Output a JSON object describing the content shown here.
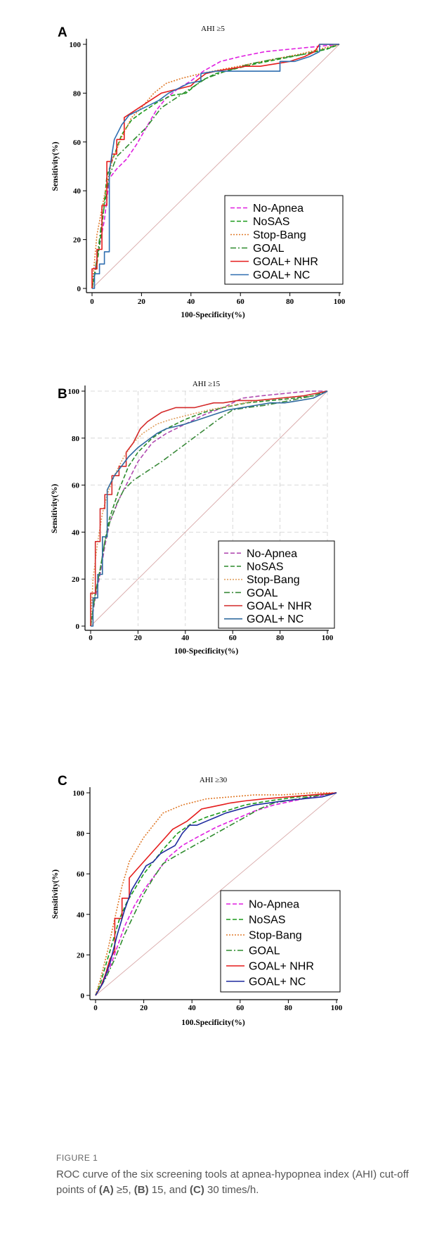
{
  "chart_data": [
    {
      "type": "line",
      "panel_label": "A",
      "title": "AHI ≥5",
      "xlabel": "100-Specificity(%)",
      "ylabel": "Sensitivity(%)",
      "xlim": [
        0,
        100
      ],
      "ylim": [
        0,
        100
      ],
      "xticks": [
        "0",
        "20",
        "40",
        "60",
        "80",
        "100"
      ],
      "yticks": [
        "0",
        "20",
        "40",
        "60",
        "80",
        "100"
      ],
      "grid": false,
      "legend_position": "bottom-right",
      "series": [
        {
          "name": "No-Apnea",
          "color": "#e01fe0",
          "dash": "6,3",
          "x": [
            0,
            2,
            5,
            7,
            10,
            14,
            18,
            22,
            26,
            30,
            35,
            40,
            45,
            52,
            60,
            70,
            80,
            90,
            100
          ],
          "y": [
            0,
            12,
            28,
            45,
            49,
            53,
            59,
            66,
            73,
            78,
            82,
            85,
            89,
            93,
            95,
            97,
            98,
            99,
            100
          ]
        },
        {
          "name": "NoSAS",
          "color": "#1a9a1a",
          "dash": "6,3",
          "x": [
            0,
            2,
            4,
            6,
            8,
            12,
            16,
            20,
            26,
            32,
            38,
            44,
            50,
            58,
            66,
            76,
            86,
            95,
            100
          ],
          "y": [
            0,
            10,
            25,
            46,
            52,
            63,
            69,
            72,
            76,
            79,
            80,
            85,
            88,
            90,
            92,
            94,
            96,
            98,
            100
          ]
        },
        {
          "name": "Stop-Bang",
          "color": "#e07a2a",
          "dash": "2,2",
          "x": [
            0,
            2,
            5,
            8,
            12,
            16,
            20,
            25,
            30,
            36,
            44,
            54,
            64,
            74,
            84,
            92,
            100
          ],
          "y": [
            0,
            22,
            38,
            52,
            62,
            70,
            74,
            80,
            84,
            86,
            88,
            90,
            92,
            94,
            96,
            98,
            100
          ]
        },
        {
          "name": "GOAL",
          "color": "#2e8b2e",
          "dash": "8,3,2,3",
          "x": [
            0,
            2,
            4,
            7,
            10,
            16,
            22,
            28,
            34,
            40,
            46,
            54,
            64,
            74,
            86,
            94,
            100
          ],
          "y": [
            0,
            12,
            28,
            46,
            54,
            60,
            66,
            74,
            78,
            82,
            86,
            89,
            92,
            94,
            96,
            98,
            100
          ]
        },
        {
          "name": "GOAL+ NHR",
          "color": "#e51c1c",
          "dash": "",
          "x": [
            0,
            0,
            2,
            2,
            4,
            4,
            6,
            6,
            8,
            8,
            10,
            10,
            13,
            13,
            16,
            19,
            22,
            25,
            28,
            32,
            36,
            40,
            42,
            46,
            50,
            56,
            62,
            68,
            74,
            80,
            86,
            90,
            92,
            96,
            100
          ],
          "y": [
            0,
            8,
            8,
            16,
            16,
            34,
            34,
            52,
            52,
            55,
            55,
            61,
            61,
            70,
            72,
            74,
            76,
            78,
            80,
            81,
            82,
            83,
            85,
            88,
            89,
            90,
            91,
            91,
            92,
            93,
            95,
            97,
            100,
            100,
            100
          ]
        },
        {
          "name": "GOAL+ NC",
          "color": "#2f6eb0",
          "dash": "",
          "x": [
            0,
            1,
            1,
            3,
            3,
            5,
            5,
            7,
            7,
            9,
            12,
            15,
            19,
            23,
            27,
            31,
            35,
            39,
            44,
            44,
            50,
            58,
            66,
            74,
            76,
            76,
            82,
            88,
            92,
            92,
            100
          ],
          "y": [
            0,
            0,
            6,
            6,
            10,
            10,
            15,
            15,
            48,
            61,
            67,
            71,
            73,
            75,
            77,
            80,
            82,
            84,
            85,
            88,
            89,
            89,
            89,
            89,
            89,
            93,
            93,
            95,
            97,
            100,
            100
          ]
        }
      ]
    },
    {
      "type": "line",
      "panel_label": "B",
      "title": "AHI ≥15",
      "xlabel": "100-Specificity(%)",
      "ylabel": "Sensitivity(%)",
      "xlim": [
        0,
        100
      ],
      "ylim": [
        0,
        100
      ],
      "xticks": [
        "0",
        "20",
        "40",
        "60",
        "80",
        "100"
      ],
      "yticks": [
        "0",
        "20",
        "40",
        "60",
        "80",
        "100"
      ],
      "grid": true,
      "legend_position": "bottom-right",
      "series": [
        {
          "name": "No-Apnea",
          "color": "#b04ab0",
          "dash": "6,3",
          "x": [
            0,
            2,
            4,
            6,
            8,
            12,
            16,
            20,
            26,
            32,
            40,
            48,
            56,
            64,
            72,
            82,
            92,
            100
          ],
          "y": [
            0,
            12,
            22,
            34,
            44,
            54,
            62,
            70,
            78,
            82,
            86,
            90,
            93,
            97,
            98,
            99,
            100,
            100
          ]
        },
        {
          "name": "NoSAS",
          "color": "#2a8a2a",
          "dash": "6,3",
          "x": [
            0,
            2,
            4,
            6,
            8,
            12,
            16,
            20,
            26,
            32,
            40,
            48,
            56,
            66,
            76,
            86,
            94,
            100
          ],
          "y": [
            0,
            14,
            24,
            36,
            46,
            58,
            68,
            74,
            80,
            84,
            88,
            91,
            93,
            95,
            96,
            97,
            98,
            100
          ]
        },
        {
          "name": "Stop-Bang",
          "color": "#e0a060",
          "dash": "2,2",
          "x": [
            0,
            1,
            3,
            5,
            7,
            10,
            14,
            18,
            22,
            28,
            34,
            42,
            50,
            60,
            70,
            80,
            90,
            100
          ],
          "y": [
            0,
            20,
            36,
            48,
            56,
            64,
            72,
            78,
            82,
            86,
            88,
            90,
            92,
            94,
            96,
            97,
            98,
            100
          ]
        },
        {
          "name": "GOAL",
          "color": "#3a8a3a",
          "dash": "8,3,2,3",
          "x": [
            0,
            2,
            4,
            6,
            8,
            11,
            14,
            18,
            24,
            30,
            38,
            46,
            54,
            60,
            66,
            74,
            84,
            94,
            100
          ],
          "y": [
            0,
            14,
            24,
            36,
            44,
            52,
            58,
            62,
            66,
            70,
            76,
            82,
            88,
            92,
            93,
            94,
            96,
            98,
            100
          ]
        },
        {
          "name": "GOAL+ NHR",
          "color": "#d42a2a",
          "dash": "",
          "x": [
            0,
            0,
            2,
            2,
            4,
            4,
            6,
            6,
            9,
            9,
            12,
            12,
            15,
            15,
            18,
            21,
            24,
            27,
            30,
            33,
            36,
            40,
            44,
            48,
            52,
            56,
            62,
            70,
            80,
            90,
            100
          ],
          "y": [
            0,
            14,
            14,
            36,
            36,
            50,
            50,
            56,
            56,
            64,
            64,
            68,
            68,
            74,
            78,
            84,
            87,
            89,
            91,
            92,
            93,
            93,
            93,
            94,
            95,
            95,
            96,
            96,
            97,
            98,
            100
          ]
        },
        {
          "name": "GOAL+ NC",
          "color": "#2f6a9e",
          "dash": "",
          "x": [
            0,
            1,
            1,
            3,
            3,
            5,
            5,
            7,
            7,
            10,
            13,
            16,
            20,
            24,
            28,
            32,
            36,
            40,
            46,
            52,
            58,
            64,
            70,
            76,
            82,
            88,
            94,
            100
          ],
          "y": [
            0,
            0,
            12,
            12,
            22,
            22,
            38,
            38,
            58,
            64,
            68,
            72,
            76,
            79,
            82,
            84,
            85,
            86,
            88,
            90,
            92,
            93,
            94,
            95,
            95,
            96,
            97,
            100
          ]
        }
      ]
    },
    {
      "type": "line",
      "panel_label": "C",
      "title": "AHI ≥30",
      "xlabel": "100.Specificity(%)",
      "ylabel": "Sensitivity(%)",
      "xlim": [
        0,
        100
      ],
      "ylim": [
        0,
        100
      ],
      "xticks": [
        "0",
        "20",
        "40",
        "60",
        "80",
        "100"
      ],
      "yticks": [
        "0",
        "20",
        "40",
        "60",
        "80",
        "100"
      ],
      "grid": false,
      "legend_position": "bottom-right",
      "series": [
        {
          "name": "No-Apnea",
          "color": "#e01fe0",
          "dash": "6,3",
          "x": [
            0,
            3,
            6,
            9,
            12,
            16,
            20,
            25,
            30,
            36,
            42,
            50,
            58,
            66,
            74,
            82,
            90,
            100
          ],
          "y": [
            0,
            6,
            14,
            24,
            34,
            44,
            52,
            60,
            68,
            74,
            78,
            83,
            87,
            91,
            94,
            96,
            98,
            100
          ]
        },
        {
          "name": "NoSAS",
          "color": "#1a9a1a",
          "dash": "6,3",
          "x": [
            0,
            2,
            4,
            6,
            8,
            10,
            13,
            16,
            20,
            24,
            28,
            34,
            40,
            46,
            54,
            62,
            72,
            84,
            100
          ],
          "y": [
            0,
            6,
            14,
            22,
            30,
            38,
            46,
            52,
            60,
            66,
            72,
            80,
            85,
            88,
            91,
            94,
            96,
            98,
            100
          ]
        },
        {
          "name": "Stop-Bang",
          "color": "#e07a2a",
          "dash": "2,2",
          "x": [
            0,
            2,
            5,
            8,
            11,
            14,
            20,
            28,
            36,
            46,
            56,
            66,
            78,
            90,
            100
          ],
          "y": [
            0,
            8,
            22,
            38,
            54,
            66,
            78,
            90,
            94,
            97,
            98,
            99,
            99,
            100,
            100
          ]
        },
        {
          "name": "GOAL",
          "color": "#2e8b2e",
          "dash": "8,3,2,3",
          "x": [
            0,
            4,
            8,
            12,
            16,
            20,
            24,
            28,
            32,
            38,
            44,
            50,
            56,
            62,
            68,
            74,
            84,
            94,
            100
          ],
          "y": [
            0,
            8,
            18,
            30,
            40,
            50,
            58,
            65,
            68,
            72,
            76,
            80,
            84,
            88,
            92,
            95,
            97,
            99,
            100
          ]
        },
        {
          "name": "GOAL+ NHR",
          "color": "#e51c1c",
          "dash": "",
          "x": [
            0,
            2,
            4,
            6,
            8,
            8,
            11,
            11,
            14,
            14,
            17,
            20,
            23,
            26,
            29,
            32,
            35,
            38,
            41,
            44,
            48,
            52,
            56,
            62,
            70,
            80,
            90,
            100
          ],
          "y": [
            0,
            4,
            10,
            18,
            22,
            38,
            38,
            48,
            48,
            58,
            62,
            66,
            70,
            74,
            78,
            82,
            84,
            86,
            89,
            92,
            93,
            94,
            95,
            96,
            97,
            98,
            99,
            100
          ]
        },
        {
          "name": "GOAL+ NC",
          "color": "#1e2a9e",
          "dash": "",
          "x": [
            0,
            3,
            6,
            9,
            12,
            15,
            18,
            21,
            24,
            27,
            30,
            33,
            36,
            39,
            42,
            46,
            50,
            54,
            60,
            66,
            72,
            78,
            86,
            94,
            100
          ],
          "y": [
            0,
            6,
            16,
            30,
            42,
            52,
            58,
            64,
            66,
            70,
            72,
            74,
            80,
            84,
            84,
            86,
            88,
            90,
            92,
            94,
            95,
            96,
            97,
            98,
            100
          ]
        }
      ]
    }
  ],
  "caption": {
    "label": "FIGURE 1",
    "text": "ROC curve of the six screening tools at apnea-hypopnea index (AHI) cut-off points of ",
    "a_label": "(A)",
    "a_value": " ≥5, ",
    "b_label": "(B)",
    "b_value": " 15, and ",
    "c_label": "(C)",
    "c_value": " 30 times/h."
  }
}
